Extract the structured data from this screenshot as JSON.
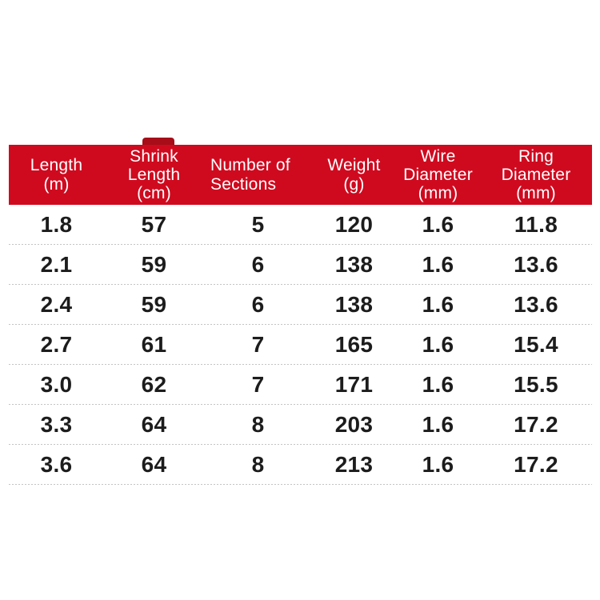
{
  "colors": {
    "header_bg": "#cf0a1f",
    "header_text": "#ffffff",
    "body_text": "#1c1c1c",
    "separator": "#c3c3c3",
    "artifact_red": "#a60d18",
    "background": "#ffffff"
  },
  "table": {
    "header": [
      "Length\n(m)",
      "Shrink\nLength\n(cm)",
      "Number of\nSections",
      "Weight\n(g)",
      "Wire\nDiameter\n(mm)",
      "Ring\nDiameter\n(mm)"
    ],
    "rows": [
      [
        "1.8",
        "57",
        "5",
        "120",
        "1.6",
        "11.8"
      ],
      [
        "2.1",
        "59",
        "6",
        "138",
        "1.6",
        "13.6"
      ],
      [
        "2.4",
        "59",
        "6",
        "138",
        "1.6",
        "13.6"
      ],
      [
        "2.7",
        "61",
        "7",
        "165",
        "1.6",
        "15.4"
      ],
      [
        "3.0",
        "62",
        "7",
        "171",
        "1.6",
        "15.5"
      ],
      [
        "3.3",
        "64",
        "8",
        "203",
        "1.6",
        "17.2"
      ],
      [
        "3.6",
        "64",
        "8",
        "213",
        "1.6",
        "17.2"
      ]
    ]
  },
  "chart_data": {
    "type": "table",
    "title": "",
    "columns": [
      "Length (m)",
      "Shrink Length (cm)",
      "Number of Sections",
      "Weight (g)",
      "Wire Diameter (mm)",
      "Ring Diameter (mm)"
    ],
    "rows": [
      [
        1.8,
        57,
        5,
        120,
        1.6,
        11.8
      ],
      [
        2.1,
        59,
        6,
        138,
        1.6,
        13.6
      ],
      [
        2.4,
        59,
        6,
        138,
        1.6,
        13.6
      ],
      [
        2.7,
        61,
        7,
        165,
        1.6,
        15.4
      ],
      [
        3.0,
        62,
        7,
        171,
        1.6,
        15.5
      ],
      [
        3.3,
        64,
        8,
        203,
        1.6,
        17.2
      ],
      [
        3.6,
        64,
        8,
        213,
        1.6,
        17.2
      ]
    ],
    "layout_hints": {
      "header_style": "solid red band, white text",
      "row_separator": "fine dotted light-gray line",
      "grid": "horizontal separators only"
    }
  }
}
